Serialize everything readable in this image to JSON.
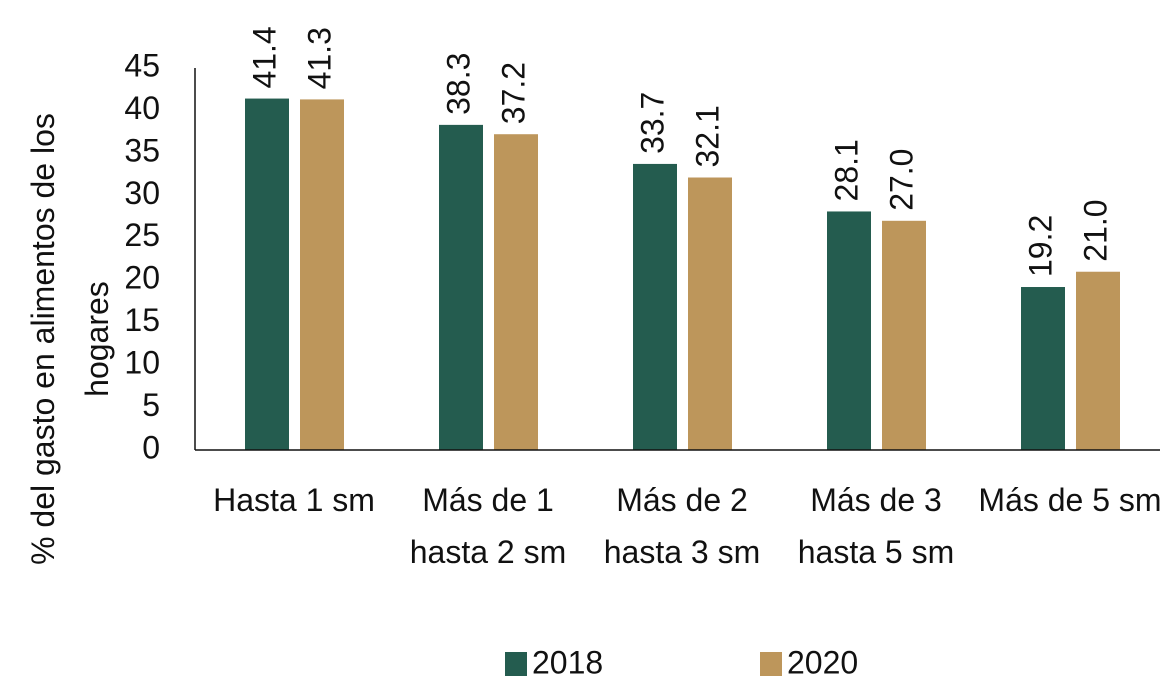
{
  "chart_data": {
    "type": "bar",
    "y_label": "% del gasto en alimentos de los hogares",
    "categories": [
      "Hasta 1 sm",
      "Más de 1 hasta 2 sm",
      "Más de 2 hasta 3 sm",
      "Más de 3 hasta 5 sm",
      "Más de 5 sm"
    ],
    "series": [
      {
        "name": "2018",
        "color": "#245c4f",
        "values": [
          41.4,
          38.3,
          33.7,
          28.1,
          19.2
        ],
        "value_labels": [
          "41.4",
          "38.3",
          "33.7",
          "28.1",
          "19.2"
        ]
      },
      {
        "name": "2020",
        "color": "#bd965b",
        "values": [
          41.3,
          37.2,
          32.1,
          27,
          21
        ],
        "value_labels": [
          "41.3",
          "37.2",
          "32.1",
          "27.0",
          "21.0"
        ]
      }
    ],
    "ylim": [
      0,
      45
    ],
    "yticks": [
      0,
      5,
      10,
      15,
      20,
      25,
      30,
      35,
      40,
      45
    ],
    "grid": false,
    "legend": "bottom"
  }
}
